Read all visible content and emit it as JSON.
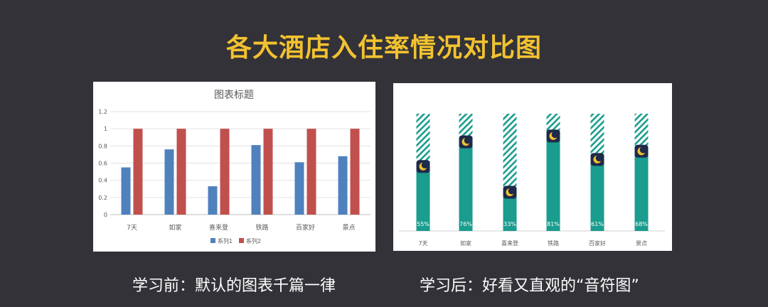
{
  "page": {
    "title": "各大酒店入住率情况对比图",
    "caption_left": "学习前：默认的图表千篇一律",
    "caption_right": "学习后：好看又直观的“音符图”"
  },
  "colors": {
    "background": "#333238",
    "title": "#f2c230",
    "series1": "#4f81bd",
    "series2": "#c0504d",
    "teal": "#1a9c8e",
    "moon_badge": "#1f2a4a",
    "moon": "#f2c230"
  },
  "chart_data": [
    {
      "type": "bar",
      "title": "图表标题",
      "categories": [
        "7天",
        "如家",
        "喜来登",
        "铁路",
        "百家好",
        "景点"
      ],
      "series": [
        {
          "name": "系列1",
          "values": [
            0.55,
            0.76,
            0.33,
            0.81,
            0.61,
            0.68
          ]
        },
        {
          "name": "系列2",
          "values": [
            1,
            1,
            1,
            1,
            1,
            1
          ]
        }
      ],
      "ylim": [
        0,
        1.2
      ],
      "yticks": [
        "0",
        "0.2",
        "0.4",
        "0.6",
        "0.8",
        "1",
        "1.2"
      ],
      "grid": true,
      "legend": "bottom"
    },
    {
      "type": "bar",
      "categories": [
        "7天",
        "如家",
        "喜来登",
        "铁路",
        "百家好",
        "景点"
      ],
      "values": [
        0.55,
        0.76,
        0.33,
        0.81,
        0.61,
        0.68
      ],
      "data_labels": [
        "55%",
        "76%",
        "33%",
        "81%",
        "61%",
        "68%"
      ],
      "max": 1,
      "stacked_remainder": "hatched",
      "marker": "moon-icon"
    }
  ]
}
